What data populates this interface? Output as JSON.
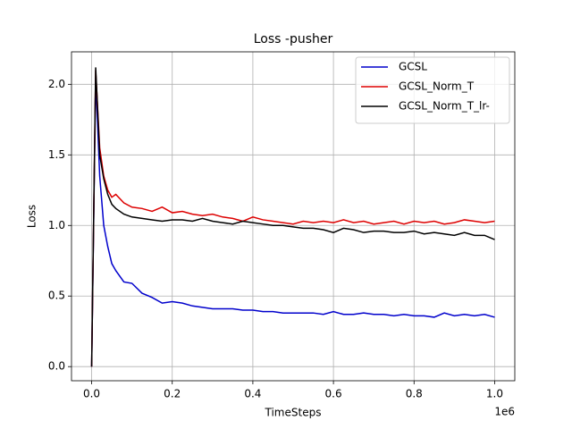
{
  "chart_data": {
    "type": "line",
    "title": "Loss -pusher",
    "x_label": "TimeSteps",
    "y_label": "Loss",
    "x_offset_label": "1e6",
    "x": [
      0,
      0.01,
      0.02,
      0.03,
      0.04,
      0.05,
      0.06,
      0.08,
      0.1,
      0.125,
      0.15,
      0.175,
      0.2,
      0.225,
      0.25,
      0.275,
      0.3,
      0.325,
      0.35,
      0.375,
      0.4,
      0.425,
      0.45,
      0.475,
      0.5,
      0.525,
      0.55,
      0.575,
      0.6,
      0.625,
      0.65,
      0.675,
      0.7,
      0.725,
      0.75,
      0.775,
      0.8,
      0.825,
      0.85,
      0.875,
      0.9,
      0.925,
      0.95,
      0.975,
      1.0
    ],
    "series": [
      {
        "name": "GCSL",
        "color": "#0000cc",
        "values": [
          0,
          2.05,
          1.35,
          1.0,
          0.85,
          0.73,
          0.68,
          0.6,
          0.59,
          0.52,
          0.49,
          0.45,
          0.46,
          0.45,
          0.43,
          0.42,
          0.41,
          0.41,
          0.41,
          0.4,
          0.4,
          0.39,
          0.39,
          0.38,
          0.38,
          0.38,
          0.38,
          0.37,
          0.39,
          0.37,
          0.37,
          0.38,
          0.37,
          0.37,
          0.36,
          0.37,
          0.36,
          0.36,
          0.35,
          0.38,
          0.36,
          0.37,
          0.36,
          0.37,
          0.35
        ]
      },
      {
        "name": "GCSL_Norm_T",
        "color": "#dd0000",
        "values": [
          0,
          2.1,
          1.55,
          1.35,
          1.25,
          1.2,
          1.22,
          1.16,
          1.13,
          1.12,
          1.1,
          1.13,
          1.09,
          1.1,
          1.08,
          1.07,
          1.08,
          1.06,
          1.05,
          1.03,
          1.06,
          1.04,
          1.03,
          1.02,
          1.01,
          1.03,
          1.02,
          1.03,
          1.02,
          1.04,
          1.02,
          1.03,
          1.01,
          1.02,
          1.03,
          1.01,
          1.03,
          1.02,
          1.03,
          1.01,
          1.02,
          1.04,
          1.03,
          1.02,
          1.03
        ]
      },
      {
        "name": "GCSL_Norm_T_lr-",
        "color": "#000000",
        "values": [
          0,
          2.12,
          1.5,
          1.33,
          1.22,
          1.15,
          1.12,
          1.08,
          1.06,
          1.05,
          1.04,
          1.03,
          1.04,
          1.04,
          1.03,
          1.05,
          1.03,
          1.02,
          1.01,
          1.03,
          1.02,
          1.01,
          1.0,
          1.0,
          0.99,
          0.98,
          0.98,
          0.97,
          0.95,
          0.98,
          0.97,
          0.95,
          0.96,
          0.96,
          0.95,
          0.95,
          0.96,
          0.94,
          0.95,
          0.94,
          0.93,
          0.95,
          0.93,
          0.93,
          0.9
        ]
      }
    ],
    "xlim": [
      -0.05,
      1.05
    ],
    "ylim": [
      -0.1,
      2.23
    ],
    "xticks": [
      {
        "value": 0,
        "label": "0.0"
      },
      0.2,
      0.4,
      0.6,
      0.8,
      {
        "value": 1,
        "label": "1.0"
      }
    ],
    "yticks": [
      {
        "value": 0,
        "label": "0.0"
      },
      0.5,
      {
        "value": 1,
        "label": "1.0"
      },
      1.5,
      {
        "value": 2,
        "label": "2.0"
      }
    ],
    "grid": true,
    "legend": "upper right"
  }
}
